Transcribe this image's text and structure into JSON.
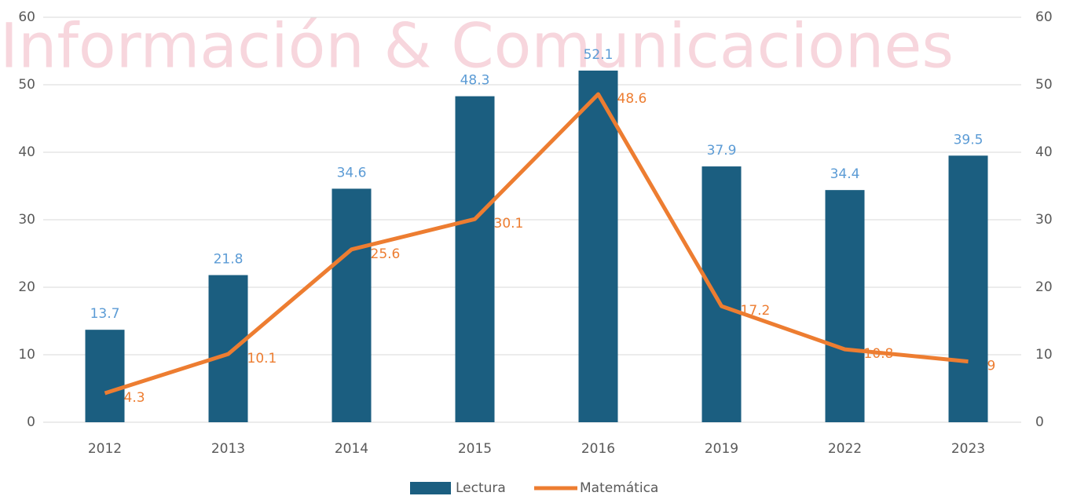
{
  "chart_data": {
    "type": "bar-line",
    "watermark": "Información & Comunicaciones",
    "categories": [
      "2012",
      "2013",
      "2014",
      "2015",
      "2016",
      "2019",
      "2022",
      "2023"
    ],
    "series": [
      {
        "name": "Lectura",
        "type": "bar",
        "color": "#1b5e80",
        "label_color": "#5b9bd5",
        "values": [
          13.7,
          21.8,
          34.6,
          48.3,
          52.1,
          37.9,
          34.4,
          39.5
        ]
      },
      {
        "name": "Matemática",
        "type": "line",
        "axis": "y2",
        "color": "#ed7d31",
        "label_color": "#ed7d31",
        "values": [
          4.3,
          10.1,
          25.6,
          30.1,
          48.6,
          17.2,
          10.8,
          9
        ]
      }
    ],
    "ylim": [
      0,
      60
    ],
    "yticks": [
      0,
      10,
      20,
      30,
      40,
      50,
      60
    ],
    "y2lim": [
      0,
      60
    ],
    "y2ticks": [
      0,
      10,
      20,
      30,
      40,
      50,
      60
    ],
    "grid": true,
    "legend": "bottom"
  }
}
